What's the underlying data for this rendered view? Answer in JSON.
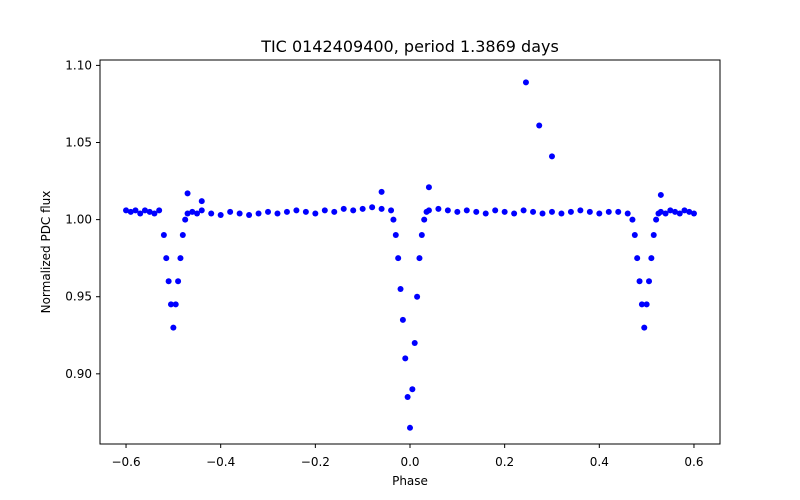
{
  "chart_data": {
    "type": "scatter",
    "title": "TIC 0142409400, period 1.3869 days",
    "xlabel": "Phase",
    "ylabel": "Normalized PDC flux",
    "xlim": [
      -0.655,
      0.655
    ],
    "ylim": [
      0.8545,
      1.1035
    ],
    "xticks": [
      -0.6,
      -0.4,
      -0.2,
      0.0,
      0.2,
      0.4,
      0.6
    ],
    "xtick_labels": [
      "−0.6",
      "−0.4",
      "−0.2",
      "0.0",
      "0.2",
      "0.4",
      "0.6"
    ],
    "yticks": [
      0.9,
      0.95,
      1.0,
      1.05,
      1.1
    ],
    "ytick_labels": [
      "0.90",
      "0.95",
      "1.00",
      "1.05",
      "1.10"
    ],
    "grid": false,
    "legend": null,
    "marker_color": "#0000ff",
    "series": [
      {
        "x": [
          -0.6,
          -0.59,
          -0.58,
          -0.57,
          -0.56,
          -0.55,
          -0.54,
          -0.53,
          -0.52,
          -0.515,
          -0.51,
          -0.505,
          -0.5,
          -0.495,
          -0.49,
          -0.485,
          -0.48,
          -0.475,
          -0.47,
          -0.46,
          -0.45,
          -0.44,
          -0.42,
          -0.4,
          -0.38,
          -0.36,
          -0.34,
          -0.32,
          -0.3,
          -0.28,
          -0.26,
          -0.24,
          -0.22,
          -0.2,
          -0.18,
          -0.16,
          -0.14,
          -0.12,
          -0.1,
          -0.08,
          -0.06,
          -0.04,
          -0.035,
          -0.03,
          -0.025,
          -0.02,
          -0.015,
          -0.01,
          -0.005,
          0.0,
          0.005,
          0.01,
          0.015,
          0.02,
          0.025,
          0.03,
          0.035,
          0.04,
          0.06,
          0.08,
          0.1,
          0.12,
          0.14,
          0.16,
          0.18,
          0.2,
          0.22,
          0.24,
          0.26,
          0.28,
          0.3,
          0.32,
          0.34,
          0.36,
          0.38,
          0.4,
          0.42,
          0.44,
          0.46,
          0.47,
          0.475,
          0.48,
          0.485,
          0.49,
          0.495,
          0.5,
          0.505,
          0.51,
          0.515,
          0.52,
          0.525,
          0.53,
          0.54,
          0.55,
          0.56,
          0.57,
          0.58,
          0.59,
          0.6,
          -0.47,
          -0.44,
          -0.06,
          0.04,
          0.245,
          0.273,
          0.3,
          0.53
        ],
        "y": [
          1.006,
          1.005,
          1.006,
          1.004,
          1.006,
          1.005,
          1.004,
          1.006,
          0.99,
          0.975,
          0.96,
          0.945,
          0.93,
          0.945,
          0.96,
          0.975,
          0.99,
          1.0,
          1.004,
          1.005,
          1.004,
          1.006,
          1.004,
          1.003,
          1.005,
          1.004,
          1.003,
          1.004,
          1.005,
          1.004,
          1.005,
          1.006,
          1.005,
          1.004,
          1.006,
          1.005,
          1.007,
          1.006,
          1.007,
          1.008,
          1.007,
          1.006,
          1.0,
          0.99,
          0.975,
          0.955,
          0.935,
          0.91,
          0.885,
          0.865,
          0.89,
          0.92,
          0.95,
          0.975,
          0.99,
          1.0,
          1.005,
          1.006,
          1.007,
          1.006,
          1.005,
          1.006,
          1.005,
          1.004,
          1.006,
          1.005,
          1.004,
          1.006,
          1.005,
          1.004,
          1.005,
          1.004,
          1.005,
          1.006,
          1.005,
          1.004,
          1.005,
          1.005,
          1.004,
          1.0,
          0.99,
          0.975,
          0.96,
          0.945,
          0.93,
          0.945,
          0.96,
          0.975,
          0.99,
          1.0,
          1.004,
          1.005,
          1.004,
          1.006,
          1.005,
          1.004,
          1.006,
          1.005,
          1.004,
          1.017,
          1.012,
          1.018,
          1.021,
          1.089,
          1.061,
          1.041,
          1.016
        ]
      }
    ]
  }
}
